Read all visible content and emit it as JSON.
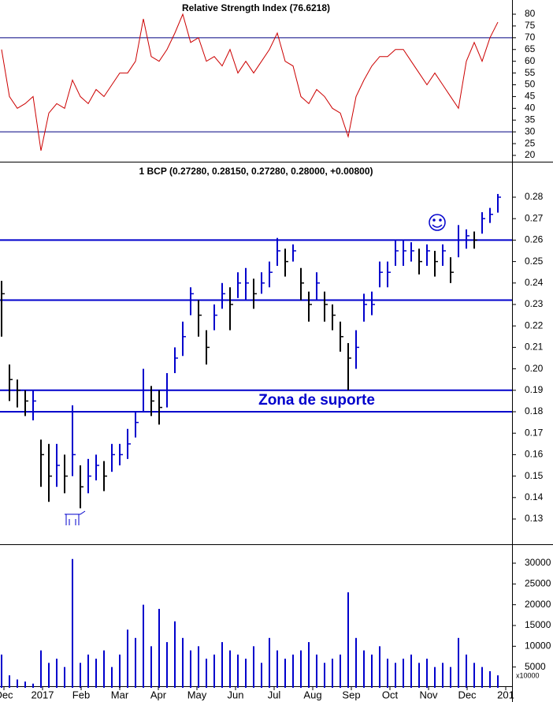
{
  "chart_data": [
    {
      "type": "line",
      "title": "Relative Strength Index (76.6218)",
      "color": "#cc0000",
      "values": [
        65,
        45,
        40,
        42,
        45,
        22,
        38,
        42,
        40,
        52,
        45,
        42,
        48,
        45,
        50,
        55,
        55,
        60,
        78,
        62,
        60,
        65,
        72,
        80,
        68,
        70,
        60,
        62,
        58,
        65,
        55,
        60,
        55,
        60,
        65,
        72,
        60,
        58,
        45,
        42,
        48,
        45,
        40,
        38,
        28,
        45,
        52,
        58,
        62,
        62,
        65,
        65,
        60,
        55,
        50,
        55,
        50,
        45,
        40,
        60,
        68,
        60,
        70,
        76.6218
      ],
      "ylim": [
        20,
        80
      ],
      "yticks": [
        20,
        25,
        30,
        35,
        40,
        45,
        50,
        55,
        60,
        65,
        70,
        75,
        80
      ],
      "levels": [
        70,
        30
      ],
      "level_color": "#000080"
    },
    {
      "type": "ohlc",
      "title": "1 BCP (0.27280, 0.28150, 0.27280, 0.28000, +0.00800)",
      "annotation": "Zona de suporte",
      "up_color": "#0000cc",
      "down_color": "#000000",
      "level_color": "#0000cc",
      "high": [
        0.241,
        0.202,
        0.195,
        0.19,
        0.19,
        0.167,
        0.165,
        0.165,
        0.16,
        0.183,
        0.155,
        0.158,
        0.16,
        0.157,
        0.165,
        0.165,
        0.172,
        0.18,
        0.2,
        0.192,
        0.19,
        0.198,
        0.21,
        0.222,
        0.238,
        0.232,
        0.218,
        0.23,
        0.24,
        0.238,
        0.245,
        0.247,
        0.242,
        0.245,
        0.25,
        0.261,
        0.256,
        0.258,
        0.247,
        0.236,
        0.245,
        0.236,
        0.23,
        0.222,
        0.212,
        0.218,
        0.235,
        0.236,
        0.25,
        0.25,
        0.26,
        0.26,
        0.259,
        0.256,
        0.258,
        0.255,
        0.258,
        0.252,
        0.267,
        0.265,
        0.264,
        0.273,
        0.275,
        0.2815
      ],
      "low": [
        0.215,
        0.185,
        0.182,
        0.178,
        0.176,
        0.145,
        0.138,
        0.145,
        0.142,
        0.15,
        0.135,
        0.142,
        0.148,
        0.143,
        0.152,
        0.155,
        0.158,
        0.168,
        0.18,
        0.178,
        0.174,
        0.182,
        0.198,
        0.206,
        0.225,
        0.215,
        0.202,
        0.218,
        0.228,
        0.218,
        0.233,
        0.232,
        0.228,
        0.235,
        0.238,
        0.248,
        0.243,
        0.25,
        0.232,
        0.222,
        0.232,
        0.222,
        0.218,
        0.208,
        0.19,
        0.2,
        0.222,
        0.225,
        0.238,
        0.238,
        0.248,
        0.248,
        0.25,
        0.244,
        0.248,
        0.243,
        0.248,
        0.24,
        0.252,
        0.256,
        0.256,
        0.263,
        0.268,
        0.2728
      ],
      "close": [
        0.235,
        0.195,
        0.19,
        0.185,
        0.185,
        0.16,
        0.15,
        0.155,
        0.15,
        0.16,
        0.145,
        0.15,
        0.155,
        0.15,
        0.16,
        0.16,
        0.165,
        0.175,
        0.19,
        0.185,
        0.182,
        0.19,
        0.205,
        0.215,
        0.235,
        0.225,
        0.21,
        0.225,
        0.235,
        0.23,
        0.24,
        0.24,
        0.235,
        0.24,
        0.245,
        0.255,
        0.25,
        0.255,
        0.24,
        0.23,
        0.24,
        0.23,
        0.225,
        0.215,
        0.205,
        0.21,
        0.23,
        0.23,
        0.245,
        0.245,
        0.255,
        0.255,
        0.255,
        0.25,
        0.255,
        0.25,
        0.255,
        0.245,
        0.26,
        0.262,
        0.26,
        0.27,
        0.272,
        0.28
      ],
      "ylim": [
        0.12,
        0.29
      ],
      "yticks": [
        0.13,
        0.14,
        0.15,
        0.16,
        0.17,
        0.18,
        0.19,
        {
          "value": 0.2,
          "label": "0.20"
        },
        0.21,
        0.22,
        0.23,
        0.24,
        0.25,
        0.26,
        0.27,
        0.28
      ],
      "levels": [
        0.26,
        0.232,
        0.19,
        0.18
      ]
    },
    {
      "type": "bar",
      "color": "#0000cc",
      "unit_label": "x10000",
      "values": [
        8000,
        3000,
        2000,
        1500,
        1000,
        9000,
        6000,
        7000,
        5000,
        31000,
        6000,
        8000,
        7000,
        9000,
        5000,
        8000,
        14000,
        12000,
        20000,
        10000,
        19000,
        11000,
        16000,
        12000,
        9000,
        10000,
        7000,
        8000,
        11000,
        9000,
        8000,
        7000,
        10000,
        6000,
        12000,
        9000,
        7000,
        8000,
        9000,
        11000,
        8000,
        6000,
        7000,
        8000,
        23000,
        12000,
        9000,
        8000,
        10000,
        7000,
        6000,
        7000,
        8000,
        6000,
        7000,
        5000,
        6000,
        5000,
        12000,
        8000,
        6000,
        5000,
        4000,
        3000
      ],
      "ylim": [
        0,
        32000
      ],
      "yticks": [
        5000,
        10000,
        15000,
        20000,
        25000,
        30000
      ],
      "xtick_labels": [
        "Dec",
        "2017",
        "Feb",
        "Mar",
        "Apr",
        "May",
        "Jun",
        "Jul",
        "Aug",
        "Sep",
        "Oct",
        "Nov",
        "Dec",
        "201"
      ]
    }
  ]
}
